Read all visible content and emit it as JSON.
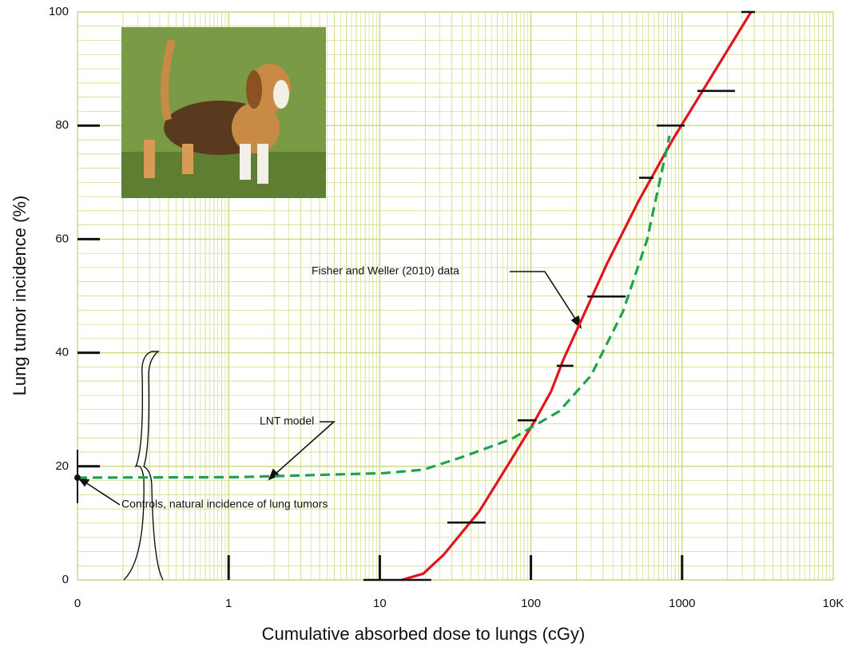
{
  "chart_data": {
    "type": "line",
    "x_label": "Cumulative absorbed dose to lungs (cGy)",
    "y_label": "Lung tumor incidence (%)",
    "log_x": true,
    "xlim": [
      0.1,
      10000
    ],
    "xticks": [
      {
        "value": 0.1,
        "label": "0"
      },
      1,
      10,
      100,
      1000,
      {
        "value": 10000,
        "label": "10K"
      }
    ],
    "ylim": [
      0,
      100
    ],
    "yticks": [
      0,
      20,
      40,
      60,
      80,
      100
    ],
    "grid": true,
    "grid_color": "#c8d87a",
    "series": [
      {
        "name": "Fisher and Weller (2010) data",
        "color": "#e0161c",
        "dashed": false,
        "x": [
          14.0,
          19.4,
          26.4,
          45.6,
          74.2,
          104,
          136,
          164,
          319,
          520,
          866,
          2858
        ],
        "values": [
          0,
          1.1,
          4.4,
          12.1,
          21.2,
          27.6,
          33.2,
          38.8,
          55.7,
          66.9,
          77.5,
          100
        ]
      },
      {
        "name": "LNT model",
        "color": "#1fa14e",
        "dashed": true,
        "x": [
          0.1,
          1.18,
          10.6,
          19.4,
          35.7,
          74.2,
          154,
          250,
          407,
          587,
          826
        ],
        "values": [
          18,
          18.1,
          18.8,
          19.4,
          21.7,
          24.8,
          29.7,
          36.0,
          47.3,
          59.9,
          78.2
        ]
      }
    ],
    "data_points": {
      "color": "#111111",
      "x_low": [
        7.8,
        28.0,
        81.7,
        148,
        236,
        520,
        679,
        1262,
        2466
      ],
      "x_high": [
        21.9,
        50.2,
        109,
        191,
        423,
        647,
        1040,
        2239,
        3034
      ],
      "values": [
        0,
        10.1,
        28.1,
        37.7,
        49.9,
        70.8,
        80.0,
        86.1,
        100
      ]
    },
    "controls": {
      "name": "Controls, natural incidence of lung tumors",
      "x": 0.1,
      "value": 18,
      "color": "#111111"
    }
  }
}
